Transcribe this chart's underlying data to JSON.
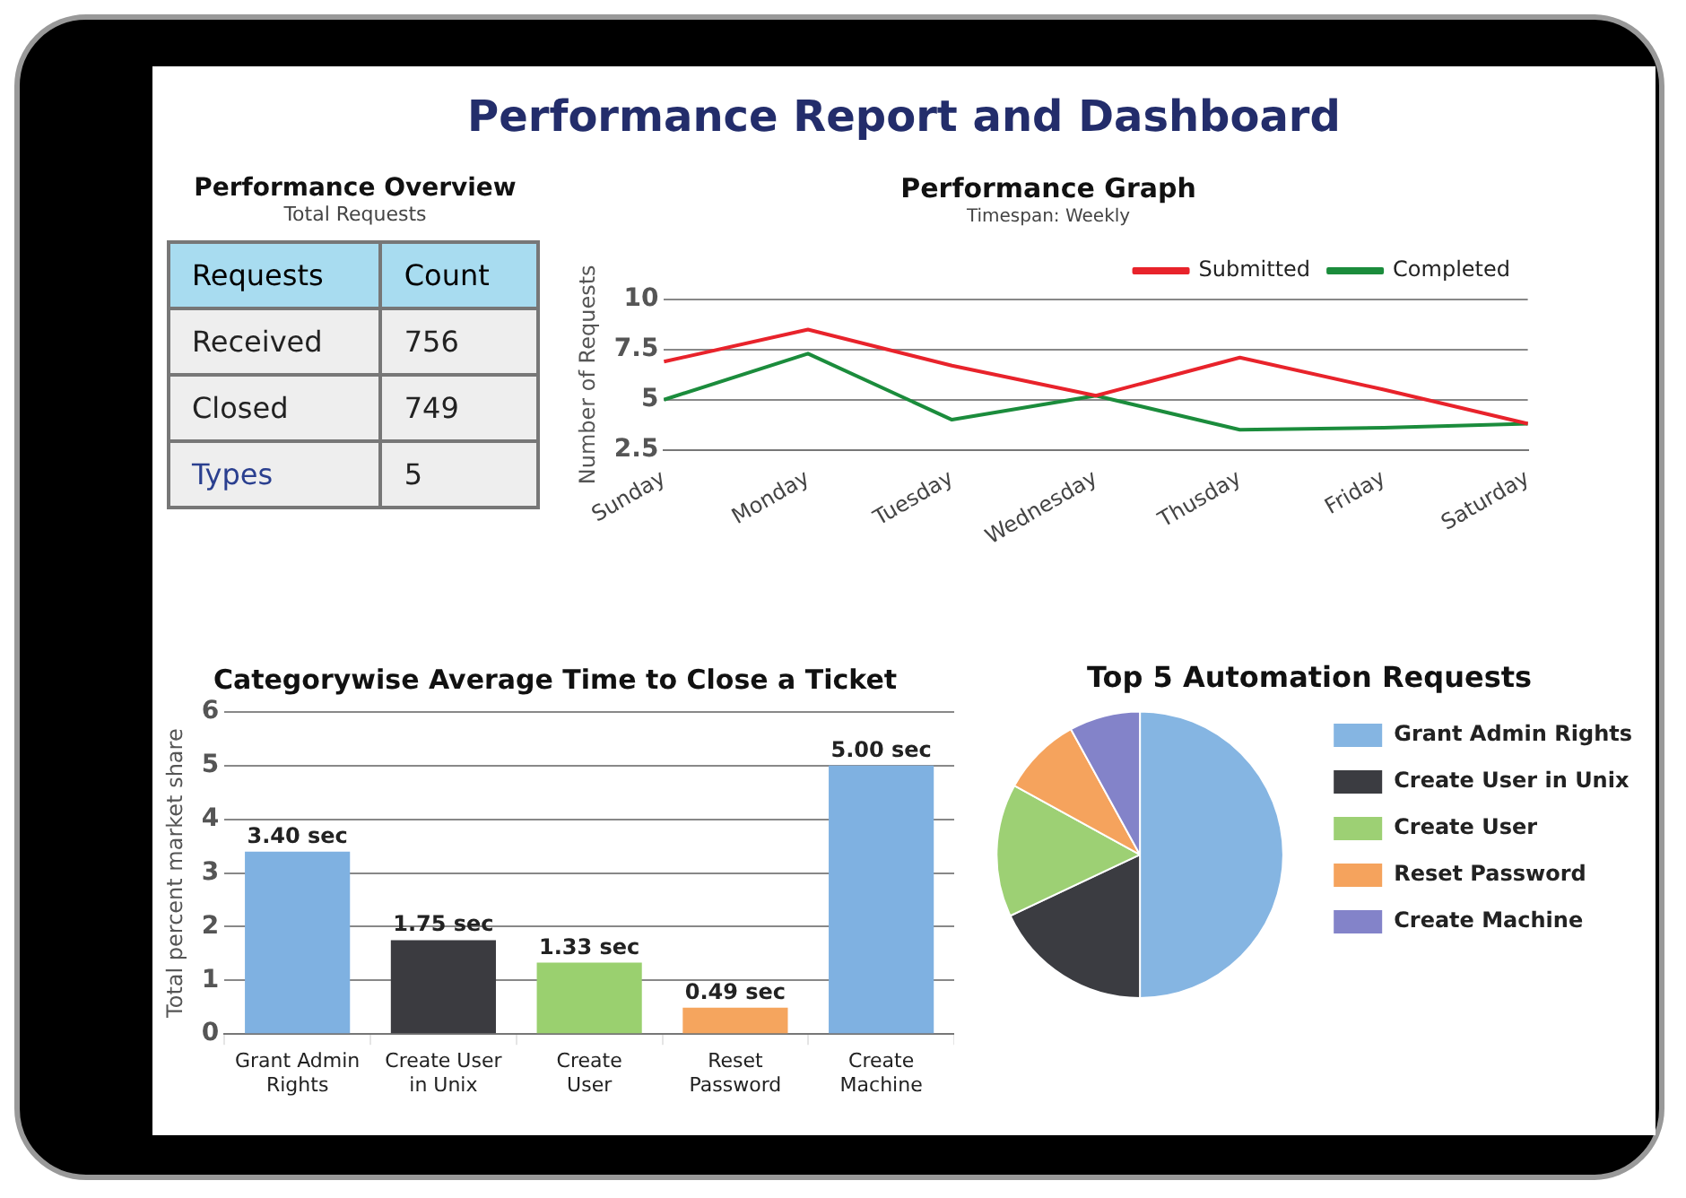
{
  "chart_data": [
    {
      "type": "other",
      "title": "Performance Overview",
      "subtitle": "Total Requests",
      "categories": [
        "Received",
        "Closed",
        "Types"
      ],
      "values": [
        756,
        749,
        5
      ],
      "data_labels": true,
      "annotations": [
        "Performance Report and Dashboard",
        "Requests",
        "Count"
      ]
    },
    {
      "type": "line",
      "title": "Performance Graph",
      "subtitle": "Timespan: Weekly",
      "ylabel": "Number of Requests",
      "categories": [
        "Sunday",
        "Monday",
        "Tuesday",
        "Wednesday",
        "Thusday",
        "Friday",
        "Saturday"
      ],
      "series": [
        {
          "name": "Submitted",
          "color": "#e8232b",
          "values": [
            6.9,
            8.5,
            6.7,
            5.2,
            7.1,
            5.5,
            3.8
          ]
        },
        {
          "name": "Completed",
          "color": "#1b8c3c",
          "values": [
            5.0,
            7.3,
            4.0,
            5.2,
            3.5,
            3.6,
            3.8
          ]
        }
      ],
      "ylim": [
        2.5,
        10
      ],
      "yticks": [
        2.5,
        5,
        7.5,
        10
      ],
      "grid": "y",
      "legend": "top right",
      "marker": "none",
      "line_style": "solid"
    },
    {
      "type": "bar",
      "title": "Categorywise Average Time to Close a Ticket",
      "ylabel": "Total percent market share",
      "categories": [
        "Grant Admin Rights",
        "Create User in Unix",
        "Create User",
        "Reset Password",
        "Create Machine"
      ],
      "values": [
        3.4,
        1.75,
        1.33,
        0.49,
        5.0
      ],
      "colors": [
        "#7fb1e1",
        "#3b3b40",
        "#9ad06f",
        "#f5a55e",
        "#7fb1e1"
      ],
      "value_labels": [
        "3.40 sec",
        "1.75 sec",
        "1.33 sec",
        "0.49 sec",
        "5.00 sec"
      ],
      "ylim": [
        0,
        6
      ],
      "yticks": [
        0,
        1,
        2,
        3,
        4,
        5,
        6
      ],
      "grid": "y"
    },
    {
      "type": "pie",
      "title": "Top 5 Automation Requests",
      "categories": [
        "Grant Admin Rights",
        "Create User in Unix",
        "Create User",
        "Reset Password",
        "Create Machine"
      ],
      "values": [
        50,
        18,
        15,
        9,
        8
      ],
      "colors": [
        "#85b5e2",
        "#3b3c41",
        "#9dd074",
        "#f5a35d",
        "#8383c9"
      ],
      "legend": "right"
    }
  ]
}
